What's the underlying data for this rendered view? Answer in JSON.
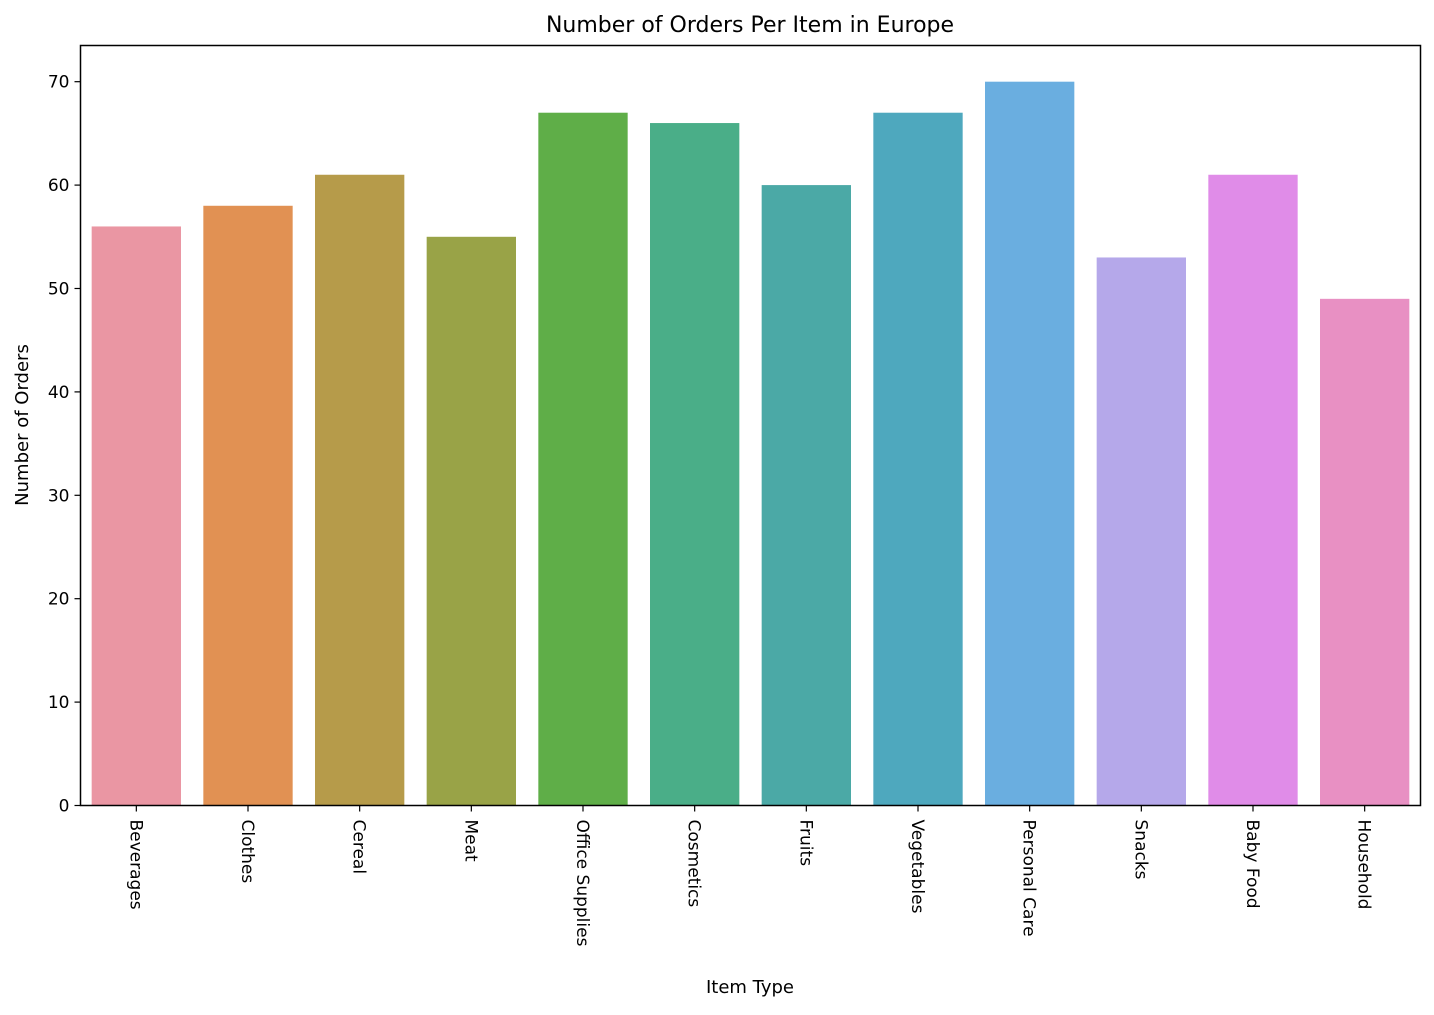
{
  "chart_data": {
    "type": "bar",
    "title": "Number of Orders Per Item in Europe",
    "xlabel": "Item Type",
    "ylabel": "Number of Orders",
    "categories": [
      "Beverages",
      "Clothes",
      "Cereal",
      "Meat",
      "Office Supplies",
      "Cosmetics",
      "Fruits",
      "Vegetables",
      "Personal Care",
      "Snacks",
      "Baby Food",
      "Household"
    ],
    "values": [
      56,
      58,
      61,
      55,
      67,
      66,
      60,
      67,
      70,
      53,
      61,
      49
    ],
    "colors": [
      "#ea96a3",
      "#e19153",
      "#b69b4a",
      "#99a347",
      "#5fae48",
      "#4aae88",
      "#4ba9a6",
      "#4ea8be",
      "#6aaee0",
      "#b5a8ea",
      "#e08ce8",
      "#e890c3"
    ],
    "ylim": [
      0,
      73.5
    ],
    "yticks": [
      0,
      10,
      20,
      30,
      40,
      50,
      60,
      70
    ],
    "grid": false,
    "legend": "none"
  }
}
